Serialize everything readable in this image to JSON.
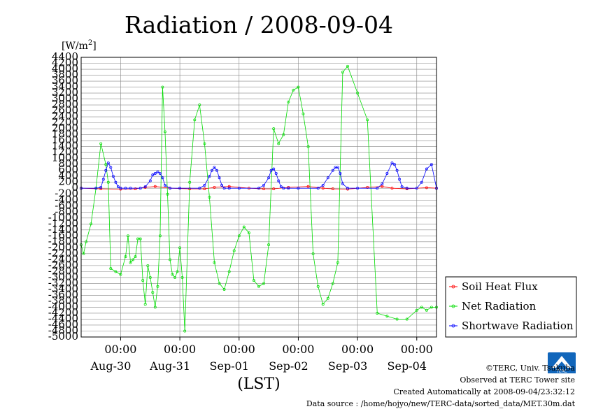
{
  "chart_data": {
    "type": "line",
    "title": "Radiation / 2008-09-04",
    "unit_prefix": "[W/m",
    "unit_sup": "2",
    "unit_suffix": "]",
    "xlabel": "(LST)",
    "ylim": [
      -5000,
      4400
    ],
    "y_ticks": [
      -5000,
      -4800,
      -4600,
      -4400,
      -4200,
      -4000,
      -3800,
      -3600,
      -3400,
      -3200,
      -3000,
      -2800,
      -2600,
      -2400,
      -2200,
      -2000,
      -1800,
      -1600,
      -1400,
      -1200,
      -1000,
      -800,
      -600,
      -400,
      -200,
      0,
      200,
      400,
      600,
      800,
      1000,
      1200,
      1400,
      1600,
      1800,
      2000,
      2200,
      2400,
      2600,
      2800,
      3000,
      3200,
      3400,
      3600,
      3800,
      4000,
      4200,
      4400
    ],
    "x_range_hours": [
      -16,
      128
    ],
    "x_ticks": [
      {
        "hour": 0,
        "time": "00:00",
        "date": "Aug-30"
      },
      {
        "hour": 24,
        "time": "00:00",
        "date": "Aug-31"
      },
      {
        "hour": 48,
        "time": "00:00",
        "date": "Sep-01"
      },
      {
        "hour": 72,
        "time": "00:00",
        "date": "Sep-02"
      },
      {
        "hour": 96,
        "time": "00:00",
        "date": "Sep-03"
      },
      {
        "hour": 120,
        "time": "00:00",
        "date": "Sep-04"
      }
    ],
    "legend_position": "right",
    "series": [
      {
        "name": "Soil Heat Flux",
        "color": "#ff0000",
        "x": [
          -16,
          -8,
          0,
          6,
          10,
          14,
          20,
          28,
          34,
          38,
          44,
          52,
          58,
          62,
          68,
          76,
          82,
          86,
          92,
          100,
          106,
          110,
          116,
          124,
          128
        ],
        "y": [
          0,
          -20,
          -30,
          -20,
          30,
          60,
          0,
          -20,
          -20,
          30,
          60,
          0,
          -20,
          -20,
          30,
          60,
          0,
          -20,
          -30,
          30,
          60,
          0,
          -20,
          20,
          0
        ]
      },
      {
        "name": "Net Radiation",
        "color": "#00dd00",
        "x": [
          -16,
          -15,
          -14,
          -12,
          -10,
          -8,
          -6,
          -5,
          -4,
          -2,
          0,
          2,
          3,
          4,
          5,
          6,
          7,
          8,
          9,
          10,
          11,
          12,
          13,
          14,
          15,
          16,
          17,
          18,
          19,
          20,
          21,
          22,
          23,
          24,
          25,
          26,
          28,
          30,
          32,
          34,
          36,
          38,
          40,
          42,
          44,
          46,
          48,
          50,
          52,
          54,
          56,
          58,
          60,
          62,
          64,
          66,
          68,
          70,
          72,
          74,
          76,
          78,
          80,
          82,
          84,
          86,
          88,
          90,
          92,
          96,
          100,
          104,
          108,
          112,
          116,
          120,
          122,
          124,
          126,
          128
        ],
        "y": [
          -1900,
          -2200,
          -1800,
          -1200,
          0,
          1500,
          800,
          200,
          -2700,
          -2800,
          -2900,
          -2300,
          -1600,
          -2500,
          -2400,
          -2300,
          -1700,
          -1700,
          -3100,
          -3900,
          -2600,
          -3000,
          -3500,
          -4000,
          -3300,
          -1600,
          3400,
          1900,
          -200,
          -2400,
          -2900,
          -3000,
          -2800,
          -2000,
          -3000,
          -4800,
          200,
          2300,
          2800,
          1500,
          -300,
          -2500,
          -3200,
          -3400,
          -2800,
          -2100,
          -1600,
          -1300,
          -1500,
          -3100,
          -3300,
          -3200,
          -1900,
          2000,
          1500,
          1800,
          2900,
          3300,
          3400,
          2500,
          1400,
          -2200,
          -3300,
          -3900,
          -3700,
          -3200,
          -2500,
          3900,
          4100,
          3200,
          2300,
          -4200,
          -4300,
          -4400,
          -4400,
          -4100,
          -4000,
          -4100,
          -4000,
          -4000
        ]
      },
      {
        "name": "Shortwave Radiation",
        "color": "#0000ff",
        "x": [
          -16,
          -10,
          -8,
          -7,
          -6,
          -5,
          -4,
          -3,
          -2,
          -1,
          0,
          2,
          4,
          8,
          10,
          12,
          13,
          14,
          15,
          16,
          17,
          18,
          20,
          24,
          32,
          34,
          36,
          37,
          38,
          39,
          40,
          41,
          42,
          44,
          48,
          56,
          58,
          60,
          61,
          62,
          63,
          64,
          65,
          66,
          68,
          72,
          80,
          82,
          84,
          86,
          87,
          88,
          89,
          90,
          92,
          96,
          104,
          106,
          108,
          110,
          111,
          112,
          113,
          114,
          116,
          120,
          122,
          124,
          126,
          128
        ],
        "y": [
          0,
          0,
          30,
          300,
          600,
          850,
          700,
          400,
          200,
          50,
          0,
          0,
          0,
          0,
          50,
          250,
          450,
          500,
          550,
          500,
          350,
          100,
          0,
          0,
          0,
          100,
          400,
          600,
          700,
          600,
          350,
          100,
          0,
          0,
          0,
          0,
          100,
          350,
          600,
          650,
          500,
          250,
          50,
          0,
          0,
          0,
          0,
          100,
          350,
          600,
          700,
          700,
          500,
          150,
          0,
          0,
          0,
          150,
          500,
          850,
          800,
          600,
          300,
          50,
          0,
          0,
          200,
          650,
          800,
          0
        ]
      }
    ]
  },
  "credits": {
    "copyright": "©TERC, Univ. Tsukuba",
    "site": "Observed at TERC Tower site",
    "created": "Created Automatically at 2008-09-04/23:32:12",
    "source": "Data source : /home/hojyo/new/TERC-data/sorted_data/MET.30m.dat",
    "logo_text": "TERC"
  },
  "colors": {
    "gridline": "#888888",
    "axis": "#000000",
    "logo": "#1166bb"
  }
}
